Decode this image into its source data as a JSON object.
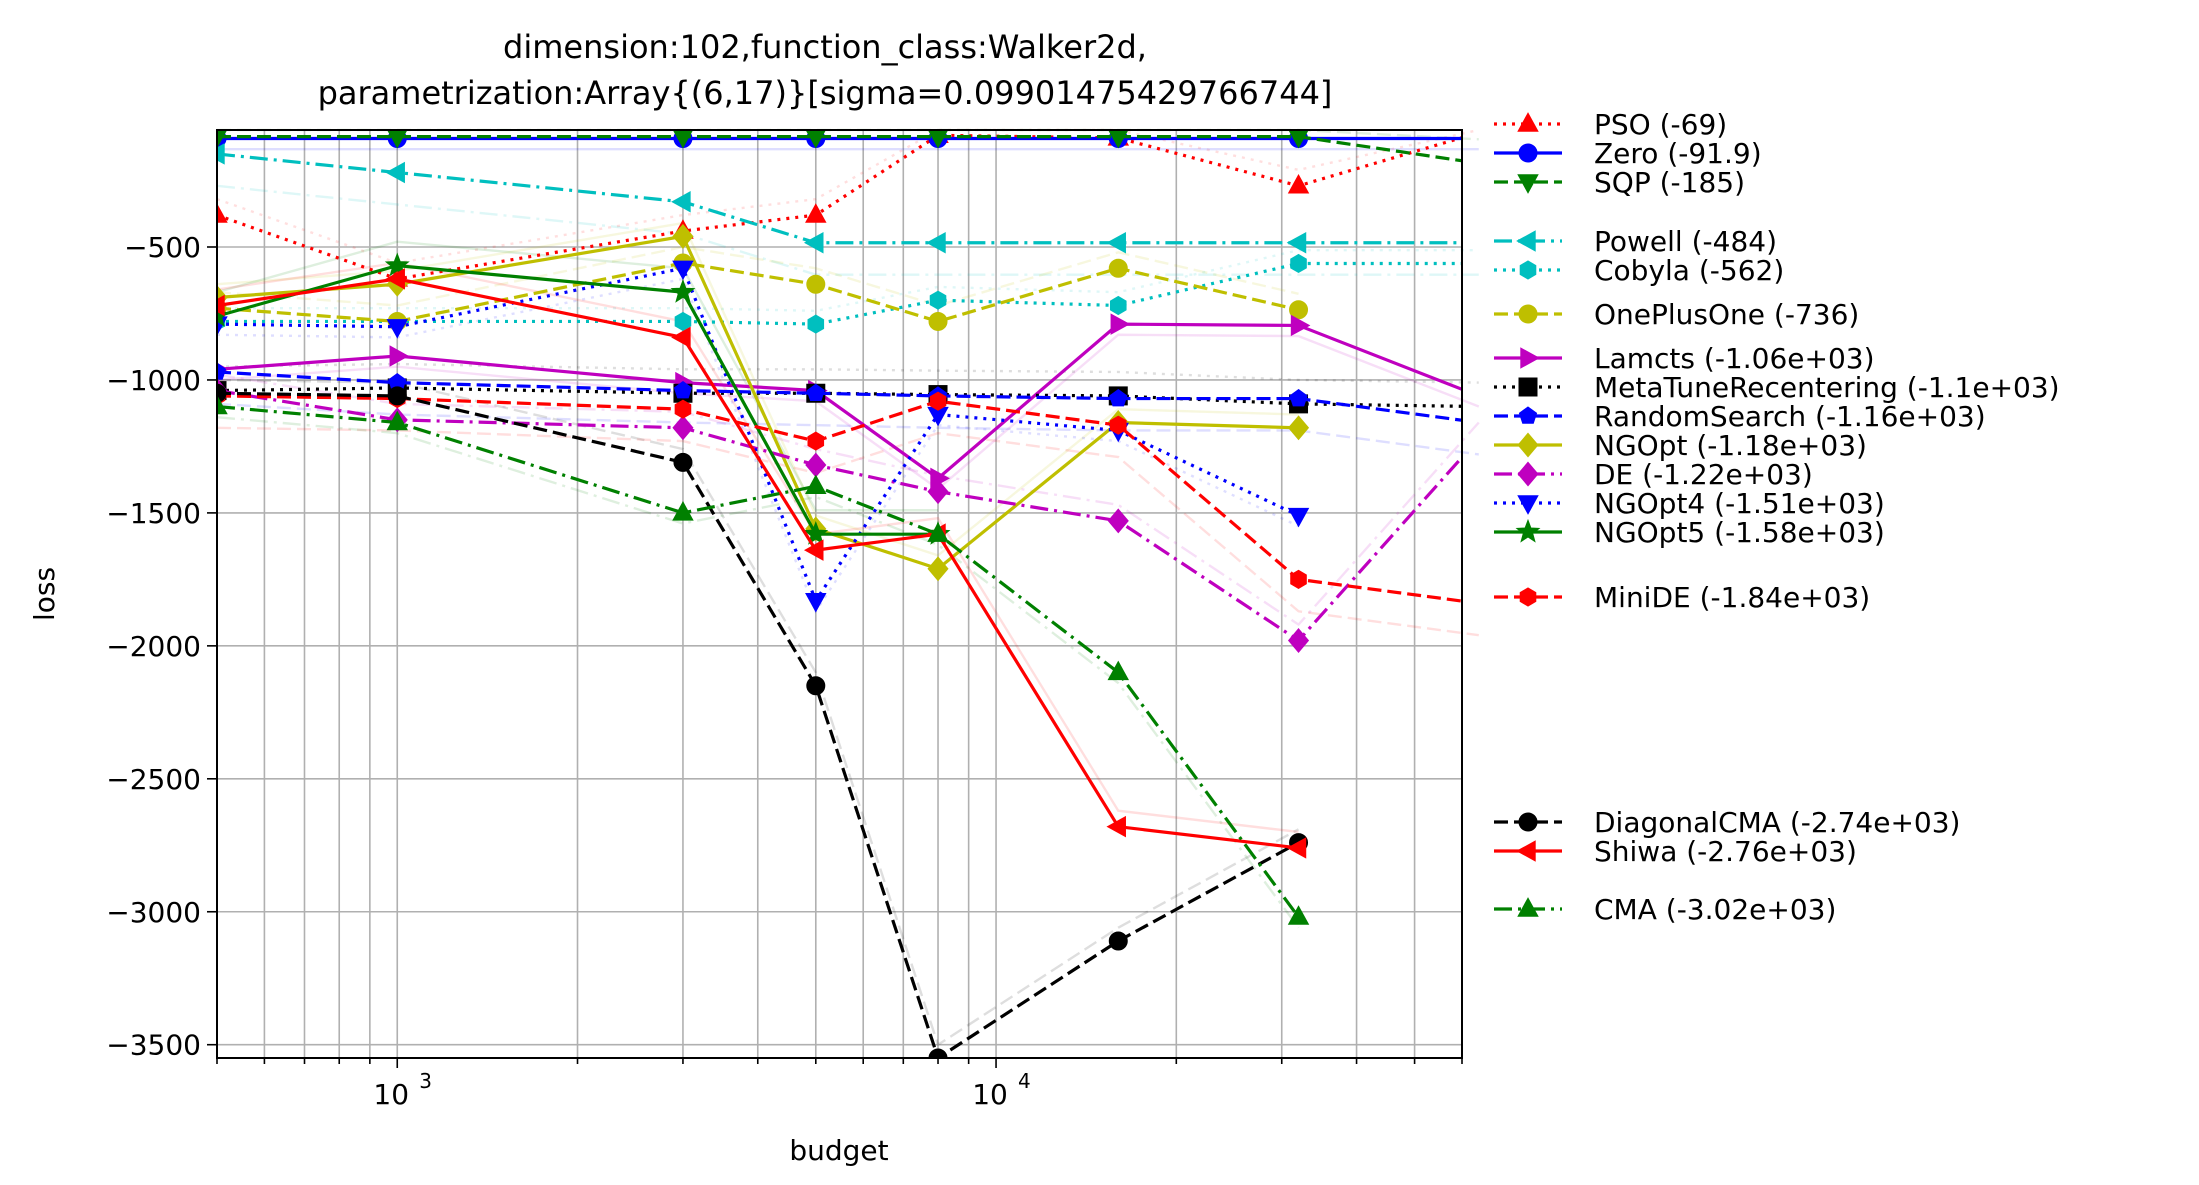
{
  "chart_data": {
    "type": "line",
    "title_line1": "dimension:102,function_class:Walker2d,",
    "title_line2": "parametrization:Array{(6,17)}[sigma=0.09901475429766744]",
    "xlabel": "budget",
    "ylabel": "loss",
    "x_scale": "log",
    "xlim": [
      500,
      60000
    ],
    "ylim": [
      -3550,
      -60
    ],
    "x_ticks": [
      {
        "value": 1000,
        "label": "10",
        "exp": "3"
      },
      {
        "value": 10000,
        "label": "10",
        "exp": "4"
      }
    ],
    "y_ticks": [
      {
        "value": -500,
        "label": "−500"
      },
      {
        "value": -1000,
        "label": "−1000"
      },
      {
        "value": -1500,
        "label": "−1500"
      },
      {
        "value": -2000,
        "label": "−2000"
      },
      {
        "value": -2500,
        "label": "−2500"
      },
      {
        "value": -3000,
        "label": "−3000"
      },
      {
        "value": -3500,
        "label": "−3500"
      }
    ],
    "grid": true,
    "legend_position": "outside-right",
    "series": [
      {
        "name": "PSO (-69)",
        "color": "#ff0000",
        "dash": "dotted",
        "marker": "triangle-up",
        "x": [
          500,
          1000,
          3000,
          5000,
          8000,
          16000,
          32000,
          64000
        ],
        "y": [
          -380,
          -620,
          -440,
          -380,
          -80,
          -90,
          -270,
          -70
        ]
      },
      {
        "name": "Zero (-91.9)",
        "color": "#0000ff",
        "dash": "solid",
        "marker": "circle",
        "x": [
          500,
          1000,
          3000,
          5000,
          8000,
          16000,
          32000,
          64000
        ],
        "y": [
          -92,
          -92,
          -92,
          -92,
          -92,
          -92,
          -92,
          -92
        ]
      },
      {
        "name": "SQP (-185)",
        "color": "#008000",
        "dash": "dashed",
        "marker": "triangle-down",
        "x": [
          500,
          1000,
          3000,
          5000,
          8000,
          16000,
          32000,
          64000
        ],
        "y": [
          -85,
          -85,
          -85,
          -85,
          -85,
          -85,
          -85,
          -185
        ]
      },
      {
        "name": "Powell (-484)",
        "color": "#00bfbf",
        "dash": "dashdot",
        "marker": "triangle-left",
        "x": [
          500,
          1000,
          3000,
          5000,
          8000,
          16000,
          32000,
          64000
        ],
        "y": [
          -150,
          -220,
          -330,
          -484,
          -484,
          -484,
          -484,
          -484
        ]
      },
      {
        "name": "Cobyla (-562)",
        "color": "#00bfbf",
        "dash": "dotted",
        "marker": "hexagon",
        "x": [
          500,
          1000,
          3000,
          5000,
          8000,
          16000,
          32000,
          64000
        ],
        "y": [
          -780,
          -780,
          -780,
          -790,
          -700,
          -720,
          -562,
          -562
        ]
      },
      {
        "name": "OnePlusOne (-736)",
        "color": "#bfbf00",
        "dash": "dashed",
        "marker": "circle",
        "x": [
          500,
          1000,
          3000,
          5000,
          8000,
          16000,
          32000
        ],
        "y": [
          -730,
          -780,
          -560,
          -640,
          -780,
          -580,
          -736
        ]
      },
      {
        "name": "Lamcts (-1.06e+03)",
        "color": "#bf00bf",
        "dash": "solid",
        "marker": "triangle-right",
        "x": [
          500,
          1000,
          3000,
          5000,
          8000,
          16000,
          32000,
          64000
        ],
        "y": [
          -960,
          -910,
          -1010,
          -1040,
          -1370,
          -790,
          -795,
          -1060
        ]
      },
      {
        "name": "MetaTuneRecentering (-1.1e+03)",
        "color": "#000000",
        "dash": "dotted",
        "marker": "square",
        "x": [
          500,
          1000,
          3000,
          5000,
          8000,
          16000,
          32000,
          64000
        ],
        "y": [
          -1040,
          -1030,
          -1050,
          -1050,
          -1055,
          -1060,
          -1090,
          -1100
        ]
      },
      {
        "name": "RandomSearch (-1.16e+03)",
        "color": "#0000ff",
        "dash": "dashed",
        "marker": "pentagon",
        "x": [
          500,
          1000,
          3000,
          5000,
          8000,
          16000,
          32000,
          64000
        ],
        "y": [
          -970,
          -1010,
          -1040,
          -1050,
          -1060,
          -1070,
          -1070,
          -1160
        ]
      },
      {
        "name": "NGOpt (-1.18e+03)",
        "color": "#bfbf00",
        "dash": "solid",
        "marker": "diamond",
        "x": [
          500,
          1000,
          3000,
          5000,
          8000,
          16000,
          32000
        ],
        "y": [
          -690,
          -640,
          -460,
          -1560,
          -1710,
          -1160,
          -1180
        ]
      },
      {
        "name": "DE (-1.22e+03)",
        "color": "#bf00bf",
        "dash": "dashdot",
        "marker": "diamond",
        "x": [
          500,
          1000,
          3000,
          5000,
          8000,
          16000,
          32000,
          64000
        ],
        "y": [
          -1040,
          -1150,
          -1180,
          -1320,
          -1420,
          -1530,
          -1980,
          -1220
        ]
      },
      {
        "name": "NGOpt4 (-1.51e+03)",
        "color": "#0000ff",
        "dash": "dotted",
        "marker": "triangle-down",
        "x": [
          500,
          1000,
          3000,
          5000,
          8000,
          16000,
          32000
        ],
        "y": [
          -790,
          -800,
          -580,
          -1830,
          -1130,
          -1190,
          -1510
        ]
      },
      {
        "name": "NGOpt5 (-1.58e+03)",
        "color": "#008000",
        "dash": "solid",
        "marker": "star",
        "x": [
          500,
          1000,
          3000,
          5000,
          8000
        ],
        "y": [
          -760,
          -570,
          -670,
          -1580,
          -1580
        ]
      },
      {
        "name": "MiniDE (-1.84e+03)",
        "color": "#ff0000",
        "dash": "dashed",
        "marker": "hexagon",
        "x": [
          500,
          1000,
          3000,
          5000,
          8000,
          16000,
          32000,
          64000
        ],
        "y": [
          -1060,
          -1070,
          -1110,
          -1230,
          -1080,
          -1170,
          -1750,
          -1840
        ]
      },
      {
        "name": "DiagonalCMA (-2.74e+03)",
        "color": "#000000",
        "dash": "dashed",
        "marker": "circle",
        "x": [
          500,
          1000,
          3000,
          5000,
          8000,
          16000,
          32000
        ],
        "y": [
          -1050,
          -1060,
          -1310,
          -2150,
          -3550,
          -3110,
          -2740
        ]
      },
      {
        "name": "Shiwa (-2.76e+03)",
        "color": "#ff0000",
        "dash": "solid",
        "marker": "triangle-left",
        "x": [
          500,
          1000,
          3000,
          5000,
          8000,
          16000,
          32000
        ],
        "y": [
          -720,
          -620,
          -840,
          -1640,
          -1580,
          -2680,
          -2760
        ]
      },
      {
        "name": "CMA (-3.02e+03)",
        "color": "#008000",
        "dash": "dashdot",
        "marker": "triangle-up",
        "x": [
          500,
          1000,
          3000,
          5000,
          8000,
          16000,
          32000
        ],
        "y": [
          -1100,
          -1160,
          -1500,
          -1400,
          -1580,
          -2100,
          -3020
        ]
      }
    ]
  }
}
